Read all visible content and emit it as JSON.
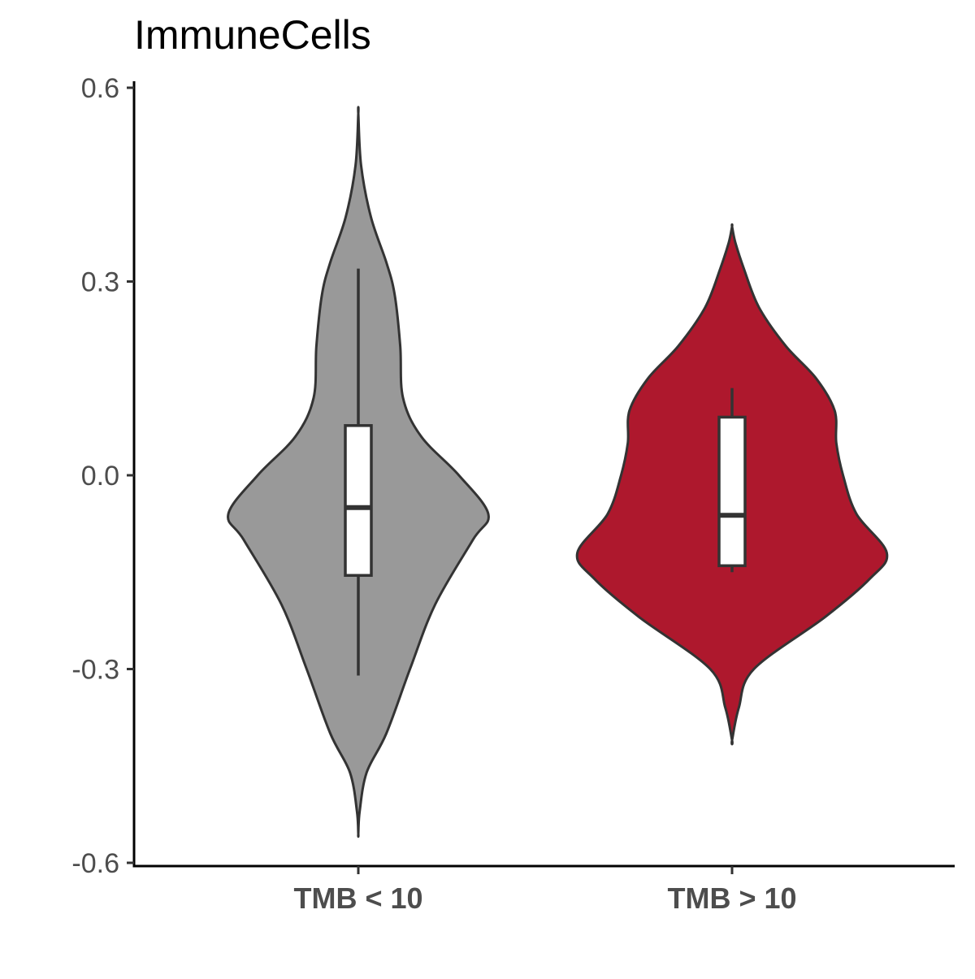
{
  "chart_data": {
    "type": "violin",
    "title": "ImmuneCells",
    "xlabel": "",
    "ylabel": "",
    "categories": [
      "TMB < 10",
      "TMB > 10"
    ],
    "ylim": [
      -0.6,
      0.6
    ],
    "yticks": [
      -0.6,
      -0.3,
      0.0,
      0.3,
      0.6
    ],
    "ytick_labels": [
      "-0.6",
      "-0.3",
      "0.0",
      "0.3",
      "0.6"
    ],
    "grid": false,
    "legend": "none",
    "groups": [
      {
        "name": "TMB < 10",
        "fill": "#999999",
        "box": {
          "lower_whisker": -0.31,
          "q1": -0.155,
          "median": -0.05,
          "q3": 0.077,
          "upper_whisker": 0.32
        },
        "violin": {
          "ymin": -0.555,
          "ymax": 0.56,
          "profile": [
            [
              -0.555,
              0.0
            ],
            [
              -0.52,
              0.01
            ],
            [
              -0.46,
              0.06
            ],
            [
              -0.4,
              0.2
            ],
            [
              -0.3,
              0.37
            ],
            [
              -0.2,
              0.55
            ],
            [
              -0.1,
              0.82
            ],
            [
              -0.06,
              0.93
            ],
            [
              0.0,
              0.72
            ],
            [
              0.06,
              0.45
            ],
            [
              0.12,
              0.32
            ],
            [
              0.2,
              0.3
            ],
            [
              0.28,
              0.26
            ],
            [
              0.33,
              0.2
            ],
            [
              0.4,
              0.09
            ],
            [
              0.48,
              0.02
            ],
            [
              0.56,
              0.0
            ]
          ]
        }
      },
      {
        "name": "TMB > 10",
        "fill": "#ae182d",
        "box": {
          "lower_whisker": -0.15,
          "q1": -0.14,
          "median": -0.062,
          "q3": 0.09,
          "upper_whisker": 0.135
        },
        "violin": {
          "ymin": -0.41,
          "ymax": 0.385,
          "profile": [
            [
              -0.41,
              0.0
            ],
            [
              -0.36,
              0.04
            ],
            [
              -0.3,
              0.13
            ],
            [
              -0.22,
              0.55
            ],
            [
              -0.16,
              0.82
            ],
            [
              -0.12,
              0.92
            ],
            [
              -0.06,
              0.74
            ],
            [
              0.0,
              0.66
            ],
            [
              0.05,
              0.62
            ],
            [
              0.1,
              0.61
            ],
            [
              0.15,
              0.5
            ],
            [
              0.2,
              0.32
            ],
            [
              0.26,
              0.16
            ],
            [
              0.32,
              0.07
            ],
            [
              0.36,
              0.02
            ],
            [
              0.385,
              0.0
            ]
          ]
        }
      }
    ]
  }
}
